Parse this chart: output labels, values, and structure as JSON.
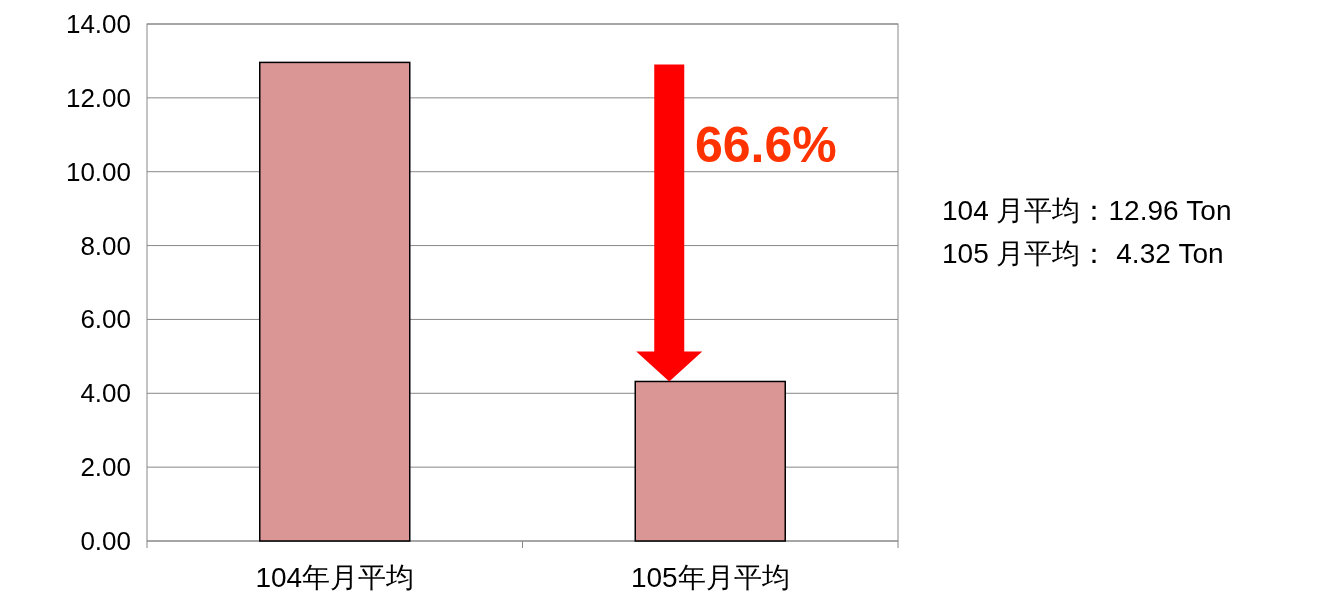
{
  "chart_data": {
    "type": "bar",
    "categories": [
      "104年月平均",
      "105年月平均"
    ],
    "values": [
      12.96,
      4.32
    ],
    "color": "#d99694",
    "ylim": [
      0,
      14
    ],
    "yticks": [
      {
        "value": 0,
        "label": "0.00"
      },
      {
        "value": 2,
        "label": "2.00"
      },
      {
        "value": 4,
        "label": "4.00"
      },
      {
        "value": 6,
        "label": "6.00"
      },
      {
        "value": 8,
        "label": "8.00"
      },
      {
        "value": 10,
        "label": "10.00"
      },
      {
        "value": 12,
        "label": "12.00"
      },
      {
        "value": 14,
        "label": "14.00"
      }
    ],
    "grid": "y",
    "annotations": [
      "66.6%",
      "104 月平均：12.96 Ton",
      "105 月平均： 4.32 Ton"
    ]
  }
}
